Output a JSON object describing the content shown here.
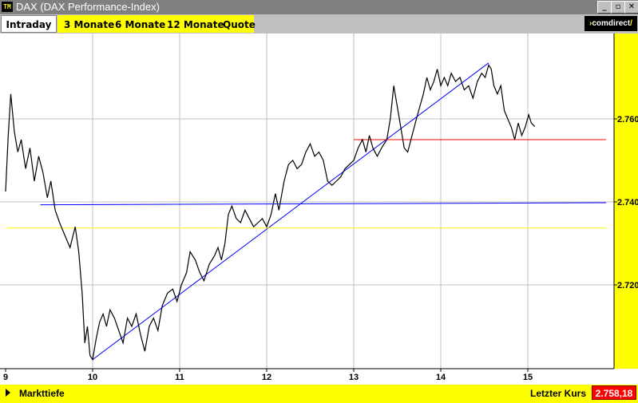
{
  "window": {
    "title": "DAX (DAX Performance-Index)",
    "icon_label": "TM",
    "buttons": [
      "_",
      "▫",
      "✕"
    ]
  },
  "tabs": [
    "Intraday",
    "3 Monate",
    "6 Monate",
    "12 Monate",
    "Quote"
  ],
  "active_tab": "Intraday",
  "logo": {
    "text": "comdirect"
  },
  "colors": {
    "price_line": "#000000",
    "trendline": "#0000ff",
    "support_line": "#0000ff",
    "resistance_line": "#ff0000",
    "reference_line": "#ffff00",
    "y_axis_bg": "#ffff00",
    "grid": "#c0c0c0"
  },
  "chart_data": {
    "type": "line",
    "title": "",
    "xlabel": "",
    "ylabel": "",
    "x_ticks": [
      "9",
      "10",
      "11",
      "12",
      "13",
      "14",
      "15"
    ],
    "y_ticks": [
      "2.720",
      "2.740",
      "2.760"
    ],
    "ylim": [
      2702,
      2774
    ],
    "xlim": [
      9.0,
      15.9
    ],
    "grid": true,
    "series": [
      {
        "values": [
          [
            9.0,
            2742.5
          ],
          [
            9.03,
            2756
          ],
          [
            9.06,
            2766
          ],
          [
            9.1,
            2757
          ],
          [
            9.14,
            2752
          ],
          [
            9.18,
            2755
          ],
          [
            9.23,
            2748
          ],
          [
            9.28,
            2753
          ],
          [
            9.33,
            2745
          ],
          [
            9.38,
            2751
          ],
          [
            9.43,
            2747
          ],
          [
            9.48,
            2741
          ],
          [
            9.52,
            2745
          ],
          [
            9.57,
            2738
          ],
          [
            9.62,
            2735
          ],
          [
            9.68,
            2732
          ],
          [
            9.74,
            2729
          ],
          [
            9.8,
            2734
          ],
          [
            9.84,
            2728
          ],
          [
            9.88,
            2718
          ],
          [
            9.91,
            2706
          ],
          [
            9.94,
            2710
          ],
          [
            9.97,
            2703
          ],
          [
            10.0,
            2702
          ],
          [
            10.04,
            2707
          ],
          [
            10.08,
            2711
          ],
          [
            10.12,
            2713
          ],
          [
            10.16,
            2710
          ],
          [
            10.2,
            2714
          ],
          [
            10.25,
            2712
          ],
          [
            10.3,
            2709
          ],
          [
            10.35,
            2706
          ],
          [
            10.4,
            2712
          ],
          [
            10.45,
            2710
          ],
          [
            10.5,
            2713
          ],
          [
            10.55,
            2708
          ],
          [
            10.6,
            2704
          ],
          [
            10.65,
            2710
          ],
          [
            10.7,
            2712
          ],
          [
            10.75,
            2709
          ],
          [
            10.8,
            2715
          ],
          [
            10.86,
            2718
          ],
          [
            10.92,
            2719
          ],
          [
            10.97,
            2716
          ],
          [
            11.02,
            2720
          ],
          [
            11.08,
            2723
          ],
          [
            11.12,
            2728
          ],
          [
            11.18,
            2726
          ],
          [
            11.23,
            2723
          ],
          [
            11.28,
            2721
          ],
          [
            11.34,
            2725
          ],
          [
            11.4,
            2727
          ],
          [
            11.44,
            2729
          ],
          [
            11.48,
            2726
          ],
          [
            11.52,
            2730
          ],
          [
            11.56,
            2737
          ],
          [
            11.6,
            2739
          ],
          [
            11.65,
            2736
          ],
          [
            11.7,
            2735
          ],
          [
            11.75,
            2738
          ],
          [
            11.8,
            2736
          ],
          [
            11.85,
            2734
          ],
          [
            11.9,
            2735
          ],
          [
            11.95,
            2736
          ],
          [
            12.0,
            2734
          ],
          [
            12.05,
            2737
          ],
          [
            12.1,
            2742
          ],
          [
            12.14,
            2738
          ],
          [
            12.2,
            2745
          ],
          [
            12.25,
            2749
          ],
          [
            12.3,
            2750
          ],
          [
            12.35,
            2748
          ],
          [
            12.4,
            2749
          ],
          [
            12.45,
            2752
          ],
          [
            12.5,
            2754
          ],
          [
            12.55,
            2751
          ],
          [
            12.6,
            2752
          ],
          [
            12.65,
            2750
          ],
          [
            12.7,
            2745
          ],
          [
            12.75,
            2744
          ],
          [
            12.8,
            2745
          ],
          [
            12.85,
            2746
          ],
          [
            12.9,
            2748
          ],
          [
            12.95,
            2749
          ],
          [
            13.0,
            2750
          ],
          [
            13.05,
            2753
          ],
          [
            13.1,
            2755
          ],
          [
            13.14,
            2752
          ],
          [
            13.18,
            2756
          ],
          [
            13.22,
            2753
          ],
          [
            13.27,
            2751
          ],
          [
            13.32,
            2753
          ],
          [
            13.38,
            2755
          ],
          [
            13.42,
            2760
          ],
          [
            13.46,
            2768
          ],
          [
            13.5,
            2763
          ],
          [
            13.54,
            2758
          ],
          [
            13.58,
            2753
          ],
          [
            13.62,
            2752
          ],
          [
            13.67,
            2756
          ],
          [
            13.72,
            2760
          ],
          [
            13.76,
            2763
          ],
          [
            13.8,
            2766
          ],
          [
            13.84,
            2770
          ],
          [
            13.88,
            2767
          ],
          [
            13.92,
            2769
          ],
          [
            13.96,
            2772
          ],
          [
            14.0,
            2768
          ],
          [
            14.04,
            2770
          ],
          [
            14.08,
            2768
          ],
          [
            14.12,
            2771
          ],
          [
            14.17,
            2769
          ],
          [
            14.22,
            2770
          ],
          [
            14.27,
            2767
          ],
          [
            14.32,
            2768
          ],
          [
            14.37,
            2765
          ],
          [
            14.42,
            2769
          ],
          [
            14.47,
            2771
          ],
          [
            14.51,
            2770
          ],
          [
            14.55,
            2773
          ],
          [
            14.58,
            2772
          ],
          [
            14.61,
            2768
          ],
          [
            14.65,
            2766
          ],
          [
            14.69,
            2768
          ],
          [
            14.73,
            2762
          ],
          [
            14.77,
            2760
          ],
          [
            14.81,
            2758
          ],
          [
            14.85,
            2755
          ],
          [
            14.89,
            2759
          ],
          [
            14.93,
            2756
          ],
          [
            14.97,
            2758
          ],
          [
            15.01,
            2761
          ],
          [
            15.04,
            2759
          ],
          [
            15.08,
            2758.2
          ]
        ]
      }
    ],
    "annotations": [
      {
        "kind": "trendline",
        "color": "#0000ff",
        "from": [
          10.0,
          2702
        ],
        "to": [
          14.55,
          2773.5
        ]
      },
      {
        "kind": "line",
        "color": "#0000ff",
        "from": [
          9.4,
          2739.3
        ],
        "to": [
          15.9,
          2739.8
        ]
      },
      {
        "kind": "line",
        "color": "#ff0000",
        "from": [
          13.0,
          2755
        ],
        "to": [
          15.9,
          2755
        ]
      },
      {
        "kind": "line",
        "color": "#ffff00",
        "from": [
          9.0,
          2733.7
        ],
        "to": [
          15.9,
          2733.7
        ]
      }
    ]
  },
  "statusbar": {
    "left_label": "Markttiefe",
    "right_label": "Letzter Kurs",
    "last_value": "2.758,18"
  }
}
